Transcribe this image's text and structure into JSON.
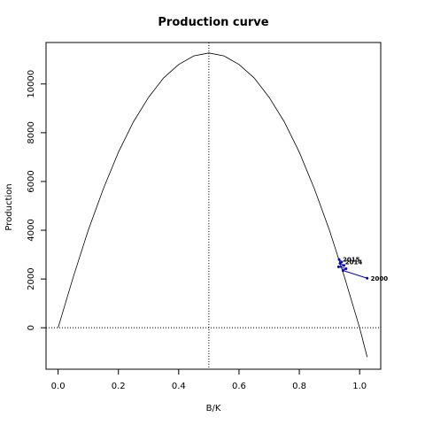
{
  "chart_data": {
    "type": "line",
    "title": "Production curve",
    "xlabel": "B/K",
    "ylabel": "Production",
    "xlim": [
      -0.04,
      1.07
    ],
    "ylim": [
      -1700,
      11700
    ],
    "x_ticks": [
      0.0,
      0.2,
      0.4,
      0.6,
      0.8,
      1.0
    ],
    "x_tick_labels": [
      "0.0",
      "0.2",
      "0.4",
      "0.6",
      "0.8",
      "1.0"
    ],
    "y_ticks": [
      0,
      2000,
      4000,
      6000,
      8000,
      10000
    ],
    "y_tick_labels": [
      "0",
      "2000",
      "4000",
      "6000",
      "8000",
      "10000"
    ],
    "grid": false,
    "reference_lines": [
      {
        "orientation": "vertical",
        "value": 0.5,
        "style": "dotted"
      },
      {
        "orientation": "horizontal",
        "value": 0,
        "style": "dotted"
      }
    ],
    "series": [
      {
        "kind": "curve",
        "color": "#000000",
        "x": [
          0.0,
          0.05,
          0.1,
          0.15,
          0.2,
          0.25,
          0.3,
          0.35,
          0.4,
          0.45,
          0.5,
          0.55,
          0.6,
          0.65,
          0.7,
          0.75,
          0.8,
          0.85,
          0.9,
          0.95,
          1.0,
          1.025
        ],
        "y": [
          0,
          2070,
          4000,
          5700,
          7200,
          8450,
          9450,
          10250,
          10800,
          11150,
          11270,
          11150,
          10800,
          10250,
          9450,
          8450,
          7200,
          5700,
          4000,
          2070,
          0,
          -1200
        ]
      },
      {
        "kind": "trajectory",
        "color": "#0000cc",
        "points": [
          {
            "label": "2000",
            "x": 1.025,
            "y": 2030
          },
          {
            "label": "",
            "x": 0.945,
            "y": 2350
          },
          {
            "label": "",
            "x": 0.955,
            "y": 2420
          },
          {
            "label": "",
            "x": 0.93,
            "y": 2500
          },
          {
            "label": "",
            "x": 0.948,
            "y": 2560
          },
          {
            "label": "",
            "x": 0.935,
            "y": 2640
          },
          {
            "label": "2014",
            "x": 0.94,
            "y": 2700
          },
          {
            "label": "2015",
            "x": 0.932,
            "y": 2800
          }
        ]
      }
    ]
  }
}
